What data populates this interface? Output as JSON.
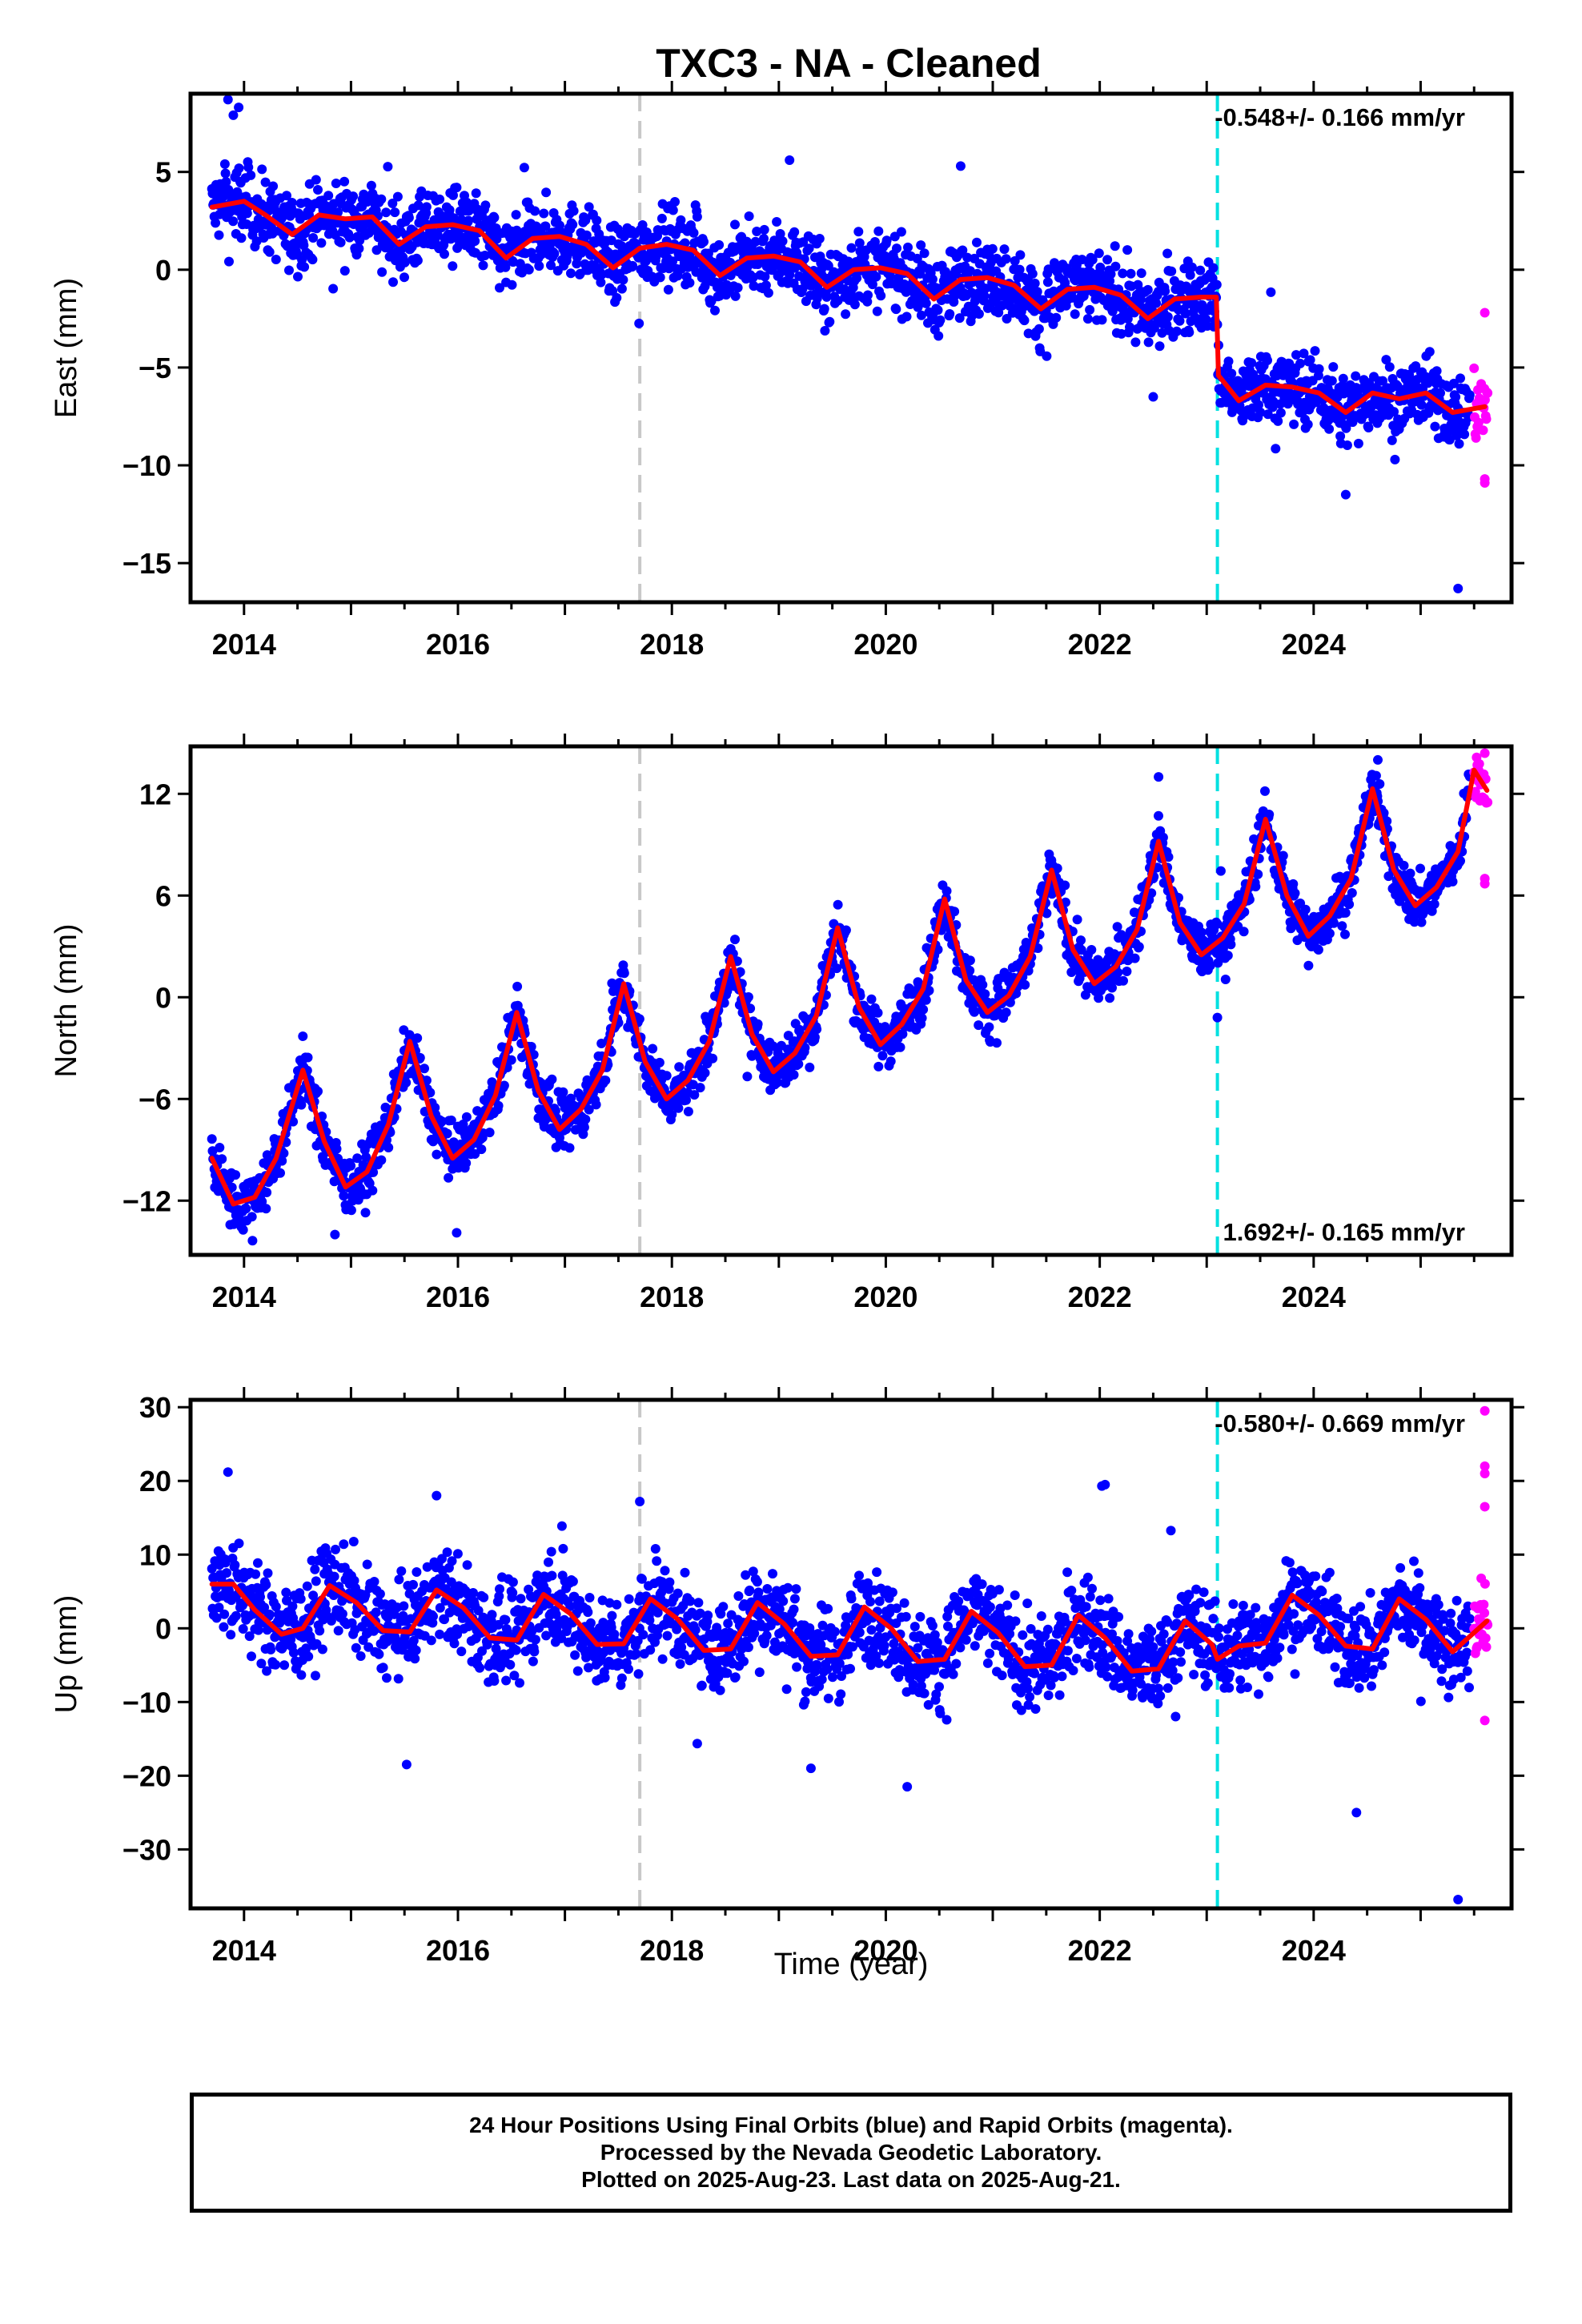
{
  "title": "TXC3  - NA - Cleaned",
  "xlabel": "Time (year)",
  "x_ticks": [
    "2014",
    "2016",
    "2018",
    "2020",
    "2022",
    "2024"
  ],
  "xlim": [
    2013.5,
    2025.85
  ],
  "colors": {
    "final": "#0000ff",
    "rapid": "#ff00ff",
    "model": "#ff0000",
    "antenna_line": "#c8c8c8",
    "equipment_line": "#00e0e0"
  },
  "footer": {
    "line1": "24 Hour Positions Using Final Orbits (blue) and Rapid Orbits (magenta).",
    "line2": "Processed by the Nevada Geodetic Laboratory.",
    "line3": "Plotted on 2025-Aug-23. Last data on 2025-Aug-21."
  },
  "chart_data": [
    {
      "type": "scatter",
      "component": "East",
      "ylabel": "East (mm)",
      "ylim": [
        -17,
        9
      ],
      "yticks": [
        5,
        0,
        -5,
        -10,
        -15
      ],
      "rate_text": "-0.548+/- 0.166 mm/yr",
      "rate_position": "top-right",
      "vertical_lines": [
        {
          "x": 2017.7,
          "kind": "antenna_line"
        },
        {
          "x": 2023.1,
          "kind": "equipment_line"
        }
      ],
      "model": {
        "x": [
          2013.7,
          2014.0,
          2014.2,
          2014.45,
          2014.7,
          2014.95,
          2015.2,
          2015.45,
          2015.7,
          2015.95,
          2016.2,
          2016.45,
          2016.7,
          2016.95,
          2017.2,
          2017.45,
          2017.7,
          2017.95,
          2018.2,
          2018.45,
          2018.7,
          2018.95,
          2019.2,
          2019.45,
          2019.7,
          2019.95,
          2020.2,
          2020.45,
          2020.7,
          2020.95,
          2021.2,
          2021.45,
          2021.7,
          2021.95,
          2022.2,
          2022.45,
          2022.7,
          2022.95,
          2023.09,
          2023.11,
          2023.3,
          2023.55,
          2023.8,
          2024.05,
          2024.3,
          2024.55,
          2024.8,
          2025.05,
          2025.3,
          2025.6
        ],
        "y": [
          3.2,
          3.5,
          2.8,
          1.8,
          2.8,
          2.6,
          2.7,
          1.3,
          2.2,
          2.3,
          2.0,
          0.6,
          1.6,
          1.7,
          1.3,
          0.1,
          1.1,
          1.3,
          1.0,
          -0.3,
          0.6,
          0.7,
          0.4,
          -0.9,
          0.0,
          0.1,
          -0.2,
          -1.5,
          -0.5,
          -0.4,
          -0.8,
          -2.0,
          -1.0,
          -0.9,
          -1.3,
          -2.5,
          -1.5,
          -1.4,
          -1.4,
          -5.4,
          -6.7,
          -5.9,
          -6.0,
          -6.3,
          -7.3,
          -6.3,
          -6.6,
          -6.3,
          -7.3,
          -7.0
        ]
      },
      "points": {
        "start": 2013.7,
        "end": 2025.46,
        "step": 0.0055,
        "scatter_sd": 1.3,
        "offset_at": 2023.1,
        "offset": -4.5,
        "rate": -0.548,
        "extras": [
          [
            2013.85,
            8.7
          ],
          [
            2013.95,
            8.3
          ],
          [
            2013.9,
            7.9
          ],
          [
            2025.35,
            -16.3
          ],
          [
            2024.3,
            -11.5
          ],
          [
            2022.5,
            -6.5
          ],
          [
            2019.1,
            5.6
          ],
          [
            2020.7,
            5.3
          ]
        ],
        "rapid_start": 2025.5,
        "rapid_end": 2025.63,
        "rapid_extras": [
          [
            2025.6,
            -2.2
          ],
          [
            2025.6,
            -10.9
          ],
          [
            2025.6,
            -10.7
          ]
        ]
      }
    },
    {
      "type": "scatter",
      "component": "North",
      "ylabel": "North (mm)",
      "ylim": [
        -15.2,
        14.8
      ],
      "yticks": [
        12,
        6,
        0,
        -6,
        -12
      ],
      "rate_text": "1.692+/- 0.165 mm/yr",
      "rate_position": "bottom-right",
      "vertical_lines": [
        {
          "x": 2017.7,
          "kind": "antenna_line"
        },
        {
          "x": 2023.1,
          "kind": "equipment_line"
        }
      ],
      "model": {
        "x": [
          2013.7,
          2013.9,
          2014.1,
          2014.3,
          2014.55,
          2014.75,
          2014.95,
          2015.15,
          2015.35,
          2015.55,
          2015.75,
          2015.95,
          2016.15,
          2016.35,
          2016.55,
          2016.75,
          2016.95,
          2017.15,
          2017.35,
          2017.55,
          2017.75,
          2017.95,
          2018.15,
          2018.35,
          2018.55,
          2018.75,
          2018.95,
          2019.15,
          2019.35,
          2019.55,
          2019.75,
          2019.95,
          2020.15,
          2020.35,
          2020.55,
          2020.75,
          2020.95,
          2021.15,
          2021.35,
          2021.55,
          2021.75,
          2021.95,
          2022.15,
          2022.35,
          2022.55,
          2022.75,
          2022.95,
          2023.15,
          2023.35,
          2023.55,
          2023.75,
          2023.95,
          2024.15,
          2024.35,
          2024.55,
          2024.75,
          2024.95,
          2025.15,
          2025.35,
          2025.5,
          2025.62
        ],
        "y": [
          -9.5,
          -12.2,
          -11.8,
          -9.5,
          -4.3,
          -8.5,
          -11.2,
          -10.3,
          -7.5,
          -2.6,
          -7.0,
          -9.5,
          -8.4,
          -5.8,
          -0.9,
          -5.5,
          -7.8,
          -6.6,
          -4.3,
          0.8,
          -3.8,
          -6.0,
          -4.9,
          -2.6,
          2.4,
          -2.2,
          -4.4,
          -3.3,
          -1.1,
          4.1,
          -0.6,
          -2.8,
          -1.6,
          0.5,
          5.8,
          1.0,
          -0.9,
          0.1,
          2.4,
          7.5,
          2.8,
          0.8,
          1.8,
          4.0,
          9.2,
          4.4,
          2.5,
          3.5,
          5.5,
          10.5,
          6.0,
          3.6,
          4.8,
          7.0,
          12.3,
          7.5,
          5.4,
          6.5,
          8.6,
          13.4,
          12.2
        ]
      },
      "points": {
        "start": 2013.7,
        "end": 2025.46,
        "step": 0.0055,
        "scatter_sd": 1.1,
        "offset_at": 0,
        "offset": 0,
        "rate": 1.692,
        "extras": [
          [
            2014.55,
            -2.3
          ],
          [
            2014.85,
            -14.0
          ],
          [
            2022.55,
            13.0
          ],
          [
            2024.6,
            14.0
          ],
          [
            2023.1,
            -1.2
          ]
        ],
        "rapid_start": 2025.5,
        "rapid_end": 2025.63,
        "rapid_extras": [
          [
            2025.6,
            14.4
          ],
          [
            2025.6,
            7.0
          ],
          [
            2025.6,
            6.7
          ]
        ]
      }
    },
    {
      "type": "scatter",
      "component": "Up",
      "ylabel": "Up (mm)",
      "ylim": [
        -38,
        31
      ],
      "yticks": [
        30,
        20,
        10,
        0,
        -10,
        -20,
        -30
      ],
      "rate_text": "-0.580+/- 0.669 mm/yr",
      "rate_position": "top-right",
      "vertical_lines": [
        {
          "x": 2017.7,
          "kind": "antenna_line"
        },
        {
          "x": 2023.1,
          "kind": "equipment_line"
        }
      ],
      "model": {
        "x": [
          2013.7,
          2013.9,
          2014.1,
          2014.35,
          2014.55,
          2014.8,
          2015.05,
          2015.3,
          2015.55,
          2015.8,
          2016.05,
          2016.3,
          2016.55,
          2016.8,
          2017.05,
          2017.3,
          2017.55,
          2017.8,
          2018.05,
          2018.3,
          2018.55,
          2018.8,
          2019.05,
          2019.3,
          2019.55,
          2019.8,
          2020.05,
          2020.3,
          2020.55,
          2020.8,
          2021.05,
          2021.3,
          2021.55,
          2021.8,
          2022.05,
          2022.3,
          2022.55,
          2022.8,
          2023.05,
          2023.1,
          2023.3,
          2023.55,
          2023.8,
          2024.05,
          2024.3,
          2024.55,
          2024.8,
          2025.05,
          2025.3,
          2025.62
        ],
        "y": [
          6.0,
          6.0,
          2.5,
          -0.8,
          0.0,
          5.8,
          3.5,
          -0.3,
          -0.5,
          5.2,
          2.8,
          -1.3,
          -1.6,
          4.6,
          2.0,
          -2.2,
          -2.1,
          4.0,
          1.3,
          -3.0,
          -2.8,
          3.5,
          0.6,
          -3.8,
          -3.6,
          2.9,
          0.0,
          -4.5,
          -4.2,
          2.3,
          -0.6,
          -5.2,
          -5.0,
          1.8,
          -1.3,
          -5.8,
          -5.5,
          1.0,
          -2.2,
          -4.2,
          -2.4,
          -2.0,
          4.5,
          1.8,
          -2.4,
          -2.8,
          4.0,
          1.2,
          -3.2,
          1.0
        ]
      },
      "points": {
        "start": 2013.7,
        "end": 2025.46,
        "step": 0.0055,
        "scatter_sd": 4.3,
        "offset_at": 0,
        "offset": 0,
        "rate": -0.58,
        "extras": [
          [
            2013.85,
            21.2
          ],
          [
            2022.05,
            19.5
          ],
          [
            2022.02,
            19.3
          ],
          [
            2024.4,
            -25.0
          ],
          [
            2025.35,
            -36.8
          ],
          [
            2020.2,
            -21.5
          ],
          [
            2019.3,
            -19.0
          ],
          [
            2017.7,
            17.2
          ],
          [
            2015.8,
            18.0
          ]
        ],
        "rapid_start": 2025.5,
        "rapid_end": 2025.63,
        "rapid_extras": [
          [
            2025.6,
            29.5
          ],
          [
            2025.6,
            22.0
          ],
          [
            2025.6,
            21.0
          ],
          [
            2025.6,
            16.5
          ],
          [
            2025.6,
            -12.5
          ]
        ]
      }
    }
  ]
}
